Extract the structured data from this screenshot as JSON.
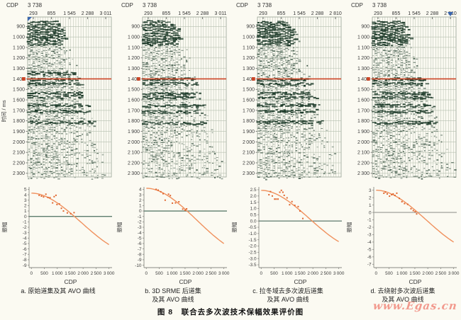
{
  "figure": {
    "title": "图 8　联合去多次波技术保幅效果评价图",
    "watermark": "www.Egas.cn"
  },
  "style_colors": {
    "background": "#fbfaf2",
    "grid": "#b5bfae",
    "wiggle": "#1e3b2a",
    "horizon_red": "#cd4526",
    "marker_blue": "#3a66b0",
    "axis": "#8a8a84",
    "tick_text": "#3c3c3c"
  },
  "chart_data": [
    {
      "key": "a",
      "type": "seismic-gather+line+scatter",
      "caption_lines": [
        "a. 原始道集及其 AVO 曲线"
      ],
      "gather": {
        "cdp_label": "CDP",
        "cdp_value": "3 738",
        "offset_ticks": [
          "293",
          "855",
          "1 545",
          "2 288",
          "3 011"
        ],
        "time_axis_label": "时间 / ms",
        "time_ticks": [
          900,
          1000,
          1100,
          1200,
          1300,
          1400,
          1500,
          1600,
          1700,
          1800,
          1900,
          2000,
          2100,
          2200,
          2300
        ],
        "time_range": [
          810,
          2335
        ],
        "horizon_line_time": 1400,
        "strong_reflector_times": [
          930,
          965,
          1005,
          1340,
          1400,
          1440,
          1530,
          1565,
          1645,
          1705,
          1810
        ],
        "wedge_fraction": {
          "top": 0.36,
          "bottom": 0.97
        },
        "corner_marker": "blue-flag-top-left"
      },
      "avo": {
        "xlabel": "CDP",
        "ylabel": "振幅",
        "x_ticks": [
          0,
          500,
          1000,
          1500,
          2000,
          2500,
          3000
        ],
        "y_ticks": [
          5,
          4,
          3,
          2,
          1,
          0,
          -1,
          -2,
          -3,
          -4,
          -5,
          -6,
          -7,
          -8,
          -9
        ],
        "y_decimals": 0,
        "trend_curve": {
          "start_amplitude": 4.3,
          "zero_crossing_cdp": 1600,
          "end_amplitude": -5.2
        },
        "scatter_points": [
          [
            300,
            3.9
          ],
          [
            390,
            3.75
          ],
          [
            470,
            3.6
          ],
          [
            560,
            4.1
          ],
          [
            640,
            3.5
          ],
          [
            720,
            3.45
          ],
          [
            820,
            2.5
          ],
          [
            880,
            3.65
          ],
          [
            950,
            3.9
          ],
          [
            990,
            2.2
          ],
          [
            1080,
            2.3
          ],
          [
            1160,
            1.5
          ],
          [
            1240,
            1.0
          ],
          [
            1390,
            0.65
          ],
          [
            1520,
            0.5
          ],
          [
            1650,
            0.7
          ]
        ],
        "zero_line_color": "#5d7d6d",
        "curve_color": "#f0915e",
        "point_color": "#e0662f"
      }
    },
    {
      "key": "b",
      "type": "seismic-gather+line+scatter",
      "caption_lines": [
        "b. 3D SRME 后道集",
        "及其 AVO 曲线"
      ],
      "gather": {
        "cdp_label": "CDP",
        "cdp_value": "3 738",
        "offset_ticks": [
          "293",
          "855",
          "1 545",
          "2 288",
          "3 011"
        ],
        "time_axis_label": "",
        "time_ticks": [
          900,
          1000,
          1100,
          1200,
          1300,
          1400,
          1500,
          1600,
          1700,
          1800,
          1900,
          2000,
          2100,
          2200,
          2300
        ],
        "time_range": [
          810,
          2335
        ],
        "horizon_line_time": 1400,
        "strong_reflector_times": [
          930,
          970,
          1010,
          1395,
          1440,
          1535,
          1570,
          1650,
          1710,
          1815
        ],
        "wedge_fraction": {
          "top": 0.36,
          "bottom": 0.97
        },
        "corner_marker": ""
      },
      "avo": {
        "xlabel": "CDP",
        "ylabel": "振幅",
        "x_ticks": [
          0,
          500,
          1000,
          1500,
          2000,
          2500,
          3000
        ],
        "y_ticks": [
          4,
          3,
          2,
          1,
          0,
          -1,
          -2,
          -3,
          -4,
          -5,
          -6,
          -7,
          -8,
          -9,
          -10
        ],
        "y_decimals": 0,
        "trend_curve": {
          "start_amplitude": 4.2,
          "zero_crossing_cdp": 1550,
          "end_amplitude": -6.0
        },
        "scatter_points": [
          [
            380,
            4.0
          ],
          [
            460,
            3.85
          ],
          [
            560,
            3.55
          ],
          [
            650,
            3.2
          ],
          [
            730,
            2.0
          ],
          [
            860,
            3.1
          ],
          [
            930,
            2.85
          ],
          [
            1010,
            1.45
          ],
          [
            1130,
            1.5
          ],
          [
            1260,
            1.7
          ],
          [
            1410,
            0.35
          ],
          [
            1500,
            0.15
          ],
          [
            1560,
            0.4
          ]
        ],
        "zero_line_color": "#5d7d6d",
        "curve_color": "#f0915e",
        "point_color": "#e0662f"
      }
    },
    {
      "key": "c",
      "type": "seismic-gather+line+scatter",
      "caption_lines": [
        "c. 拉冬域去多次波后道集",
        "及其 AVO 曲线"
      ],
      "gather": {
        "cdp_label": "CDP",
        "cdp_value": "3 738",
        "offset_ticks": [
          "293",
          "855",
          "1 545",
          "2 288",
          "2 810"
        ],
        "time_axis_label": "",
        "time_ticks": [
          900,
          1000,
          1100,
          1200,
          1300,
          1400,
          1500,
          1600,
          1700,
          1800,
          1900,
          2000,
          2100,
          2200,
          2300
        ],
        "time_range": [
          810,
          2335
        ],
        "horizon_line_time": 1400,
        "strong_reflector_times": [
          935,
          970,
          1005,
          1400,
          1445,
          1530,
          1570,
          1645,
          1700,
          1805
        ],
        "wedge_fraction": {
          "top": 0.36,
          "bottom": 0.97
        },
        "corner_marker": ""
      },
      "avo": {
        "xlabel": "CDP",
        "ylabel": "振幅",
        "x_ticks": [
          0,
          500,
          1000,
          1500,
          2000,
          2500,
          3000
        ],
        "y_ticks": [
          2.5,
          2.0,
          1.5,
          1.0,
          0.5,
          0.0,
          -0.5,
          -1.0,
          -1.5,
          -2.0,
          -2.5,
          -3.0,
          -3.5
        ],
        "y_decimals": 1,
        "trend_curve": {
          "start_amplitude": 2.45,
          "zero_crossing_cdp": 1900,
          "end_amplitude": -1.65
        },
        "scatter_points": [
          [
            300,
            2.1
          ],
          [
            360,
            2.35
          ],
          [
            430,
            2.0
          ],
          [
            520,
            1.75
          ],
          [
            580,
            1.75
          ],
          [
            650,
            1.75
          ],
          [
            720,
            2.3
          ],
          [
            780,
            2.45
          ],
          [
            840,
            2.3
          ],
          [
            890,
            2.05
          ],
          [
            1000,
            1.85
          ],
          [
            1100,
            1.3
          ],
          [
            1190,
            1.55
          ],
          [
            1300,
            1.25
          ],
          [
            1430,
            1.15
          ],
          [
            1500,
            0.8
          ],
          [
            1610,
            0.2
          ]
        ],
        "zero_line_color": "#6b8478",
        "curve_color": "#f0915e",
        "point_color": "#e0662f"
      }
    },
    {
      "key": "d",
      "type": "seismic-gather+line+scatter",
      "caption_lines": [
        "d. 去绕射多次波后道集",
        "及其 AVO 曲线"
      ],
      "gather": {
        "cdp_label": "CDP",
        "cdp_value": "3 738",
        "offset_ticks": [
          "293",
          "855",
          "1 545",
          "2 288",
          "2 810"
        ],
        "time_axis_label": "",
        "time_ticks": [
          900,
          1000,
          1100,
          1200,
          1300,
          1400,
          1500,
          1600,
          1700,
          1800,
          1900,
          2000,
          2100,
          2200,
          2300
        ],
        "time_range": [
          810,
          2335
        ],
        "horizon_line_time": 1400,
        "strong_reflector_times": [
          930,
          968,
          1008,
          1398,
          1442,
          1532,
          1568,
          1648,
          1708,
          1812
        ],
        "wedge_fraction": {
          "top": 0.36,
          "bottom": 0.97
        },
        "corner_marker": "blue-triangle-top-right"
      },
      "avo": {
        "xlabel": "CDP",
        "ylabel": "振幅",
        "x_ticks": [
          0,
          500,
          1000,
          1500,
          2000,
          2500,
          3000
        ],
        "y_ticks": [
          3,
          2,
          1,
          0,
          -1,
          -2,
          -3,
          -4,
          -5,
          -6,
          -7
        ],
        "y_decimals": 0,
        "trend_curve": {
          "start_amplitude": 3.0,
          "zero_crossing_cdp": 1560,
          "end_amplitude": -4.0
        },
        "scatter_points": [
          [
            300,
            2.6
          ],
          [
            360,
            2.75
          ],
          [
            430,
            2.5
          ],
          [
            520,
            2.2
          ],
          [
            600,
            2.4
          ],
          [
            660,
            2.5
          ],
          [
            730,
            2.3
          ],
          [
            800,
            2.6
          ],
          [
            900,
            1.9
          ],
          [
            1000,
            1.45
          ],
          [
            1100,
            1.2
          ],
          [
            1220,
            1.1
          ],
          [
            1350,
            0.5
          ],
          [
            1440,
            0.25
          ],
          [
            1510,
            0.1
          ],
          [
            1570,
            -0.2
          ]
        ],
        "zero_line_color": "#a9aaa4",
        "curve_color": "#f0915e",
        "point_color": "#e0662f"
      }
    }
  ]
}
